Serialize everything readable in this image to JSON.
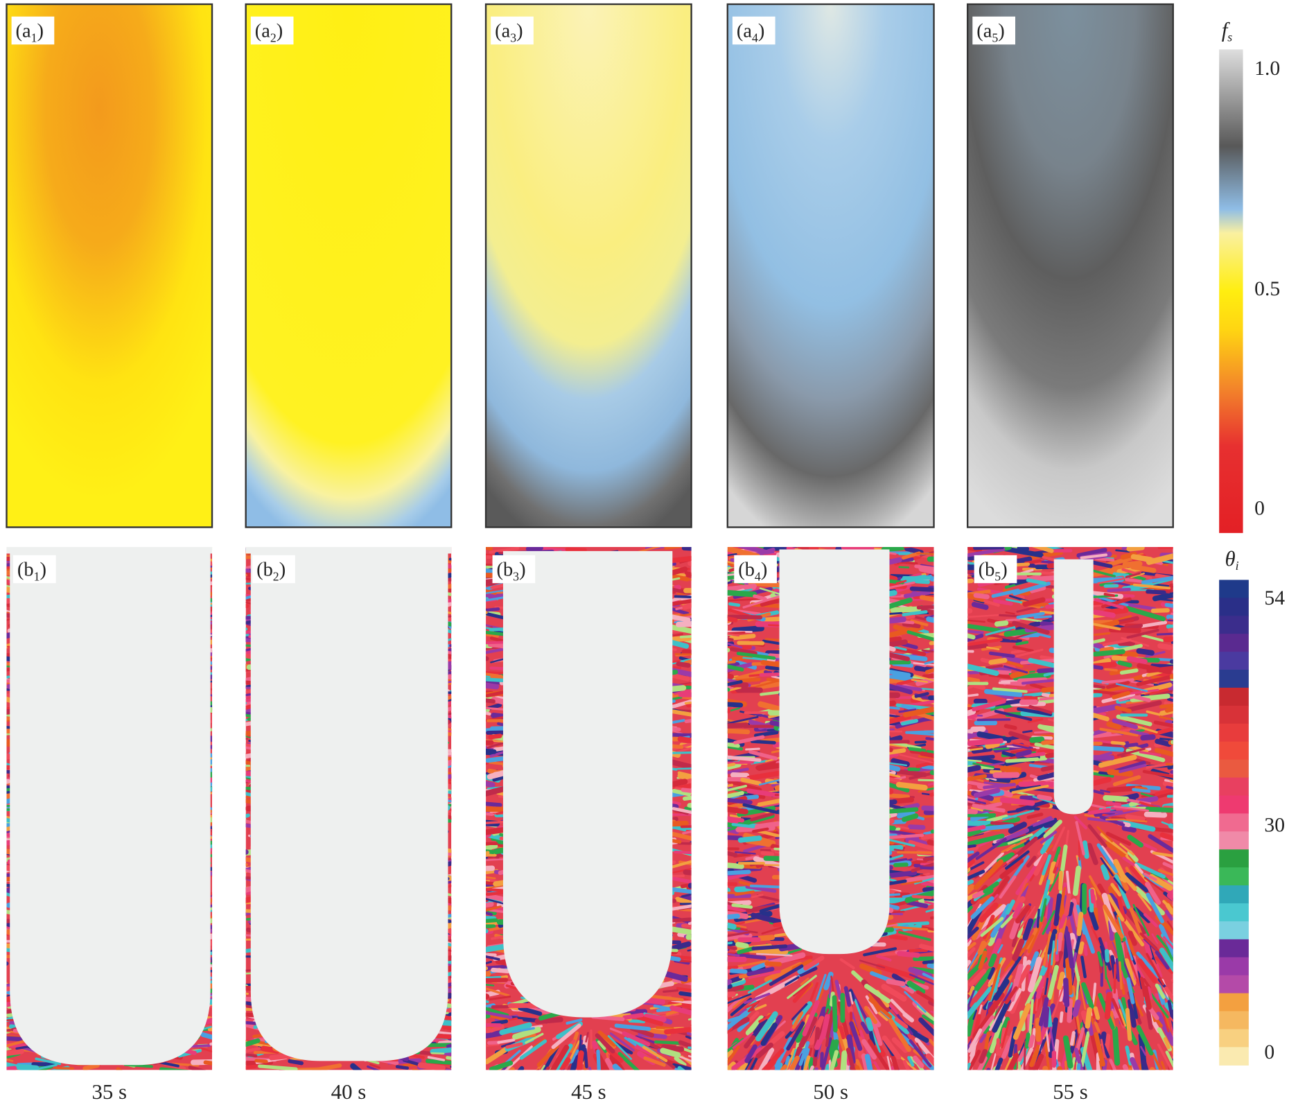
{
  "panels": [
    {
      "top_label": {
        "open": "(a",
        "sub": "1",
        "close": ")"
      },
      "bottom_label": {
        "open": "(b",
        "sub": "1",
        "close": ")"
      },
      "time": "35 s"
    },
    {
      "top_label": {
        "open": "(a",
        "sub": "2",
        "close": ")"
      },
      "bottom_label": {
        "open": "(b",
        "sub": "2",
        "close": ")"
      },
      "time": "40 s"
    },
    {
      "top_label": {
        "open": "(a",
        "sub": "3",
        "close": ")"
      },
      "bottom_label": {
        "open": "(b",
        "sub": "3",
        "close": ")"
      },
      "time": "45 s"
    },
    {
      "top_label": {
        "open": "(a",
        "sub": "4",
        "close": ")"
      },
      "bottom_label": {
        "open": "(b",
        "sub": "4",
        "close": ")"
      },
      "time": "50 s"
    },
    {
      "top_label": {
        "open": "(a",
        "sub": "5",
        "close": ")"
      },
      "bottom_label": {
        "open": "(b",
        "sub": "5",
        "close": ")"
      },
      "time": "55 s"
    }
  ],
  "colorbars": {
    "fs": {
      "title": {
        "main": "f",
        "sub": "s"
      },
      "ticks": [
        "1.0",
        "0.5",
        "0"
      ]
    },
    "theta": {
      "title": {
        "main": "θ",
        "sub": "i"
      },
      "ticks": [
        "54",
        "30",
        "0"
      ]
    }
  }
}
